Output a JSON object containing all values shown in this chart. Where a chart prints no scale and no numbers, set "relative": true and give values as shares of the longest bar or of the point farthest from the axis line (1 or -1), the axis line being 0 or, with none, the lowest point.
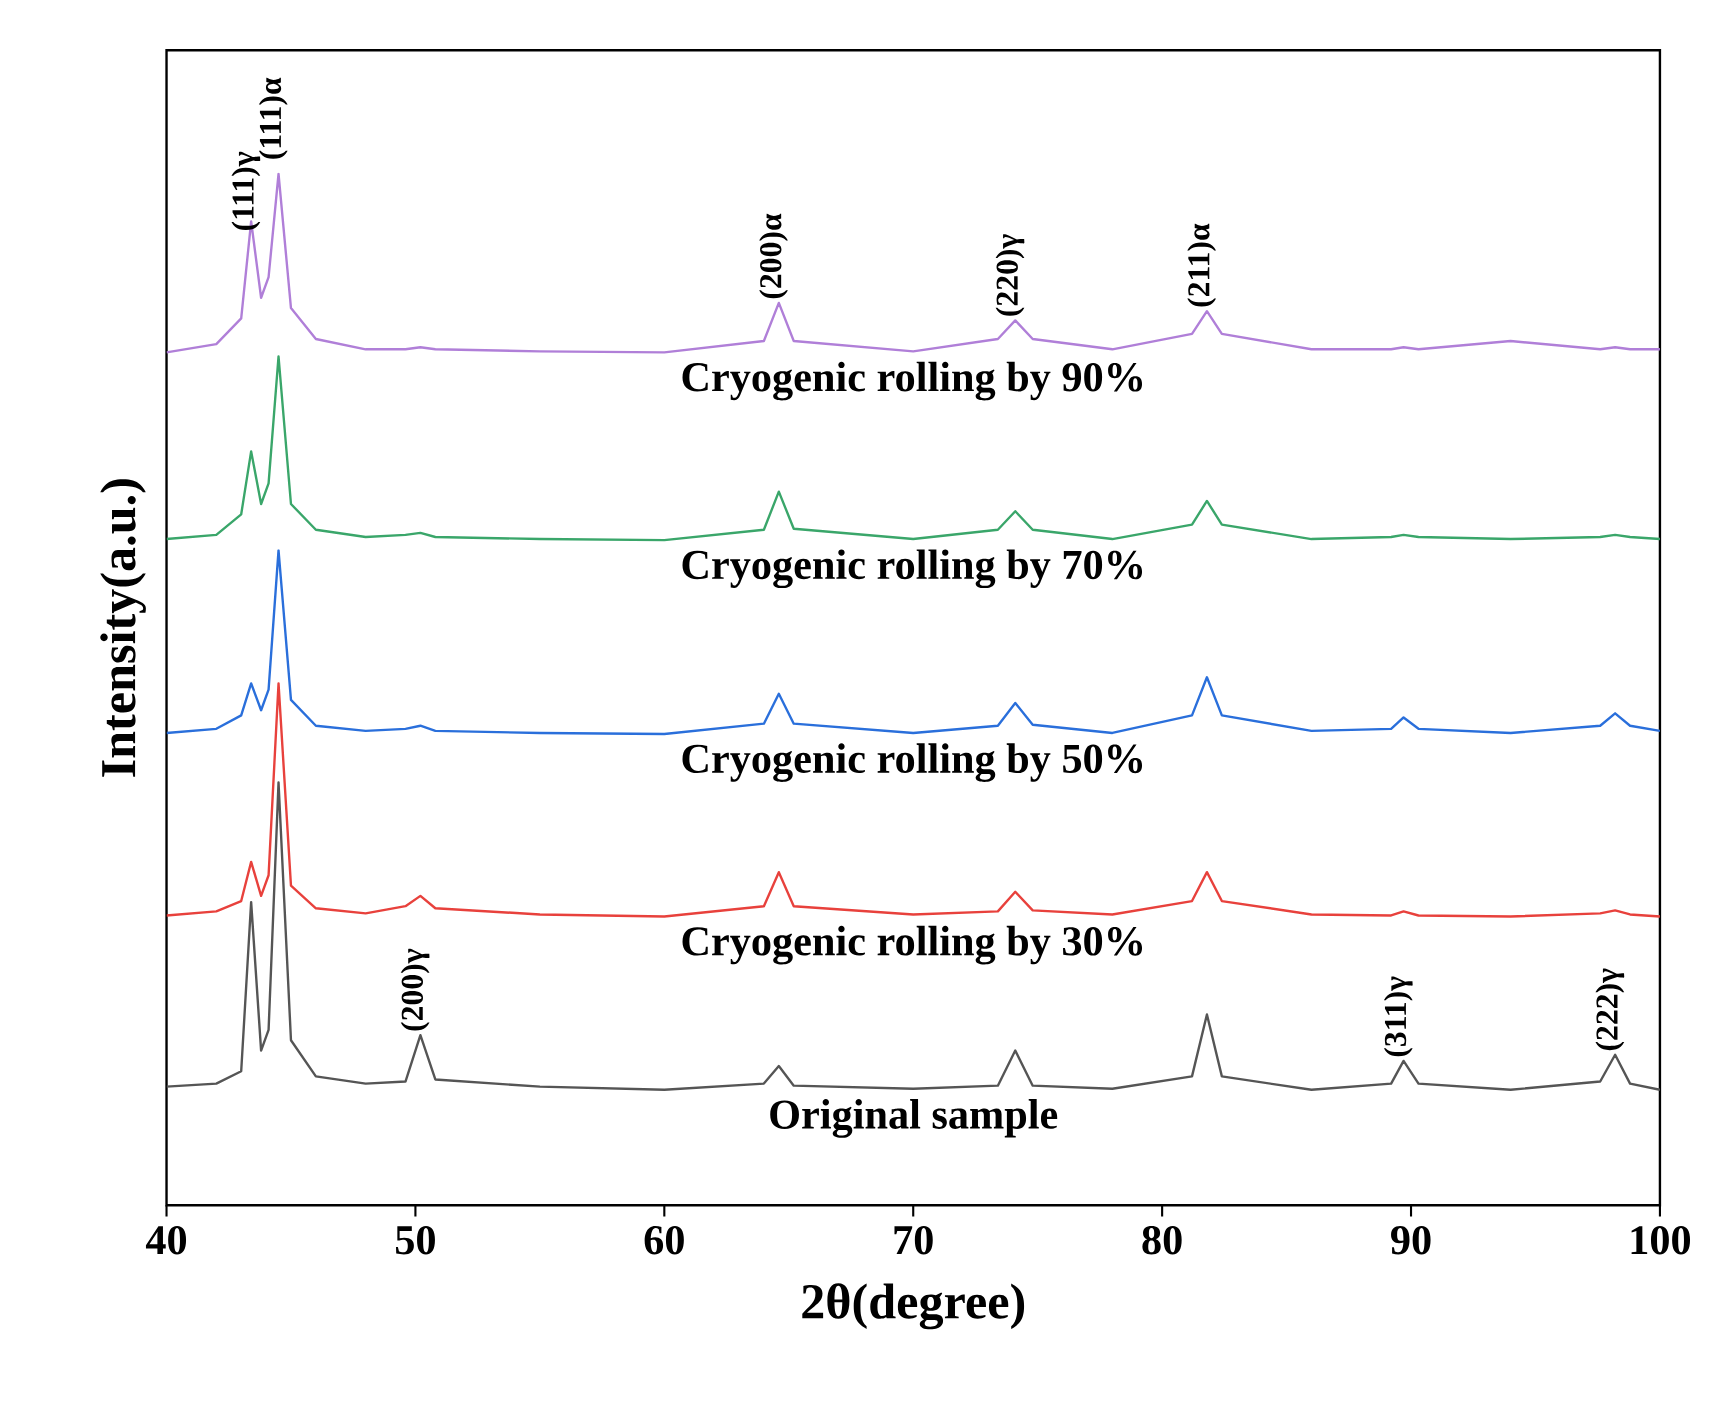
{
  "chart_data": {
    "type": "line",
    "relative": true,
    "xlabel": "2θ(degree)",
    "ylabel": "Intensity(a.u.)",
    "xlim": [
      40,
      100
    ],
    "xticks": [
      40,
      50,
      60,
      70,
      80,
      90,
      100
    ],
    "grid": false,
    "tick_labels": "x",
    "x": [
      40,
      42,
      43,
      43.4,
      43.8,
      44.1,
      44.5,
      45,
      46,
      48,
      49.6,
      50.2,
      50.8,
      55,
      60,
      64,
      64.6,
      65.2,
      70,
      73.4,
      74.1,
      74.8,
      78,
      81.2,
      81.8,
      82.4,
      86,
      89.2,
      89.7,
      90.3,
      94,
      97.6,
      98.2,
      98.8,
      100
    ],
    "series": [
      {
        "name": "Original sample",
        "color": "#555555",
        "values": [
          0.115,
          0.118,
          0.13,
          0.294,
          0.15,
          0.17,
          0.41,
          0.16,
          0.125,
          0.118,
          0.12,
          0.165,
          0.122,
          0.115,
          0.112,
          0.118,
          0.135,
          0.116,
          0.113,
          0.116,
          0.15,
          0.116,
          0.113,
          0.125,
          0.185,
          0.125,
          0.112,
          0.118,
          0.14,
          0.118,
          0.112,
          0.12,
          0.146,
          0.118,
          0.112
        ]
      },
      {
        "name": "Cryogenic rolling by 30%",
        "color": "#e8413c",
        "values": [
          0.281,
          0.285,
          0.295,
          0.333,
          0.3,
          0.32,
          0.506,
          0.31,
          0.288,
          0.283,
          0.29,
          0.3,
          0.288,
          0.282,
          0.28,
          0.29,
          0.323,
          0.29,
          0.282,
          0.285,
          0.304,
          0.286,
          0.282,
          0.295,
          0.323,
          0.295,
          0.282,
          0.281,
          0.285,
          0.281,
          0.28,
          0.283,
          0.286,
          0.282,
          0.28
        ]
      },
      {
        "name": "Cryogenic rolling by 50%",
        "color": "#2a6fdb",
        "values": [
          0.458,
          0.462,
          0.475,
          0.506,
          0.48,
          0.5,
          0.635,
          0.49,
          0.465,
          0.46,
          0.462,
          0.465,
          0.46,
          0.458,
          0.457,
          0.467,
          0.496,
          0.467,
          0.458,
          0.465,
          0.487,
          0.466,
          0.458,
          0.475,
          0.512,
          0.475,
          0.46,
          0.462,
          0.473,
          0.462,
          0.458,
          0.465,
          0.477,
          0.465,
          0.46
        ]
      },
      {
        "name": "Cryogenic rolling by 70%",
        "color": "#3aa66a",
        "values": [
          0.646,
          0.65,
          0.67,
          0.731,
          0.68,
          0.7,
          0.823,
          0.68,
          0.655,
          0.648,
          0.65,
          0.652,
          0.648,
          0.646,
          0.645,
          0.655,
          0.692,
          0.656,
          0.646,
          0.655,
          0.673,
          0.655,
          0.646,
          0.66,
          0.683,
          0.66,
          0.646,
          0.648,
          0.65,
          0.648,
          0.646,
          0.648,
          0.65,
          0.648,
          0.646
        ]
      },
      {
        "name": "Cryogenic rolling by 90%",
        "color": "#b07fd8",
        "values": [
          0.827,
          0.835,
          0.86,
          0.954,
          0.88,
          0.9,
          1.0,
          0.87,
          0.84,
          0.83,
          0.83,
          0.832,
          0.83,
          0.828,
          0.827,
          0.838,
          0.875,
          0.838,
          0.828,
          0.84,
          0.858,
          0.84,
          0.83,
          0.845,
          0.867,
          0.845,
          0.83,
          0.83,
          0.832,
          0.83,
          0.838,
          0.83,
          0.832,
          0.83,
          0.83
        ]
      }
    ],
    "annotations": [
      {
        "text": "(111)γ",
        "x": 43.4,
        "y": 0.954
      },
      {
        "text": "(111)α",
        "x": 44.5,
        "y": 1.0
      },
      {
        "text": "(200)α",
        "x": 64.6,
        "y": 0.875
      },
      {
        "text": "(220)γ",
        "x": 74.1,
        "y": 0.858
      },
      {
        "text": "(211)α",
        "x": 81.8,
        "y": 0.867
      },
      {
        "text": "(200)γ",
        "x": 50.2,
        "y": 0.165
      },
      {
        "text": "(311)γ",
        "x": 89.7,
        "y": 0.14
      },
      {
        "text": "(222)γ",
        "x": 98.2,
        "y": 0.146
      }
    ]
  }
}
